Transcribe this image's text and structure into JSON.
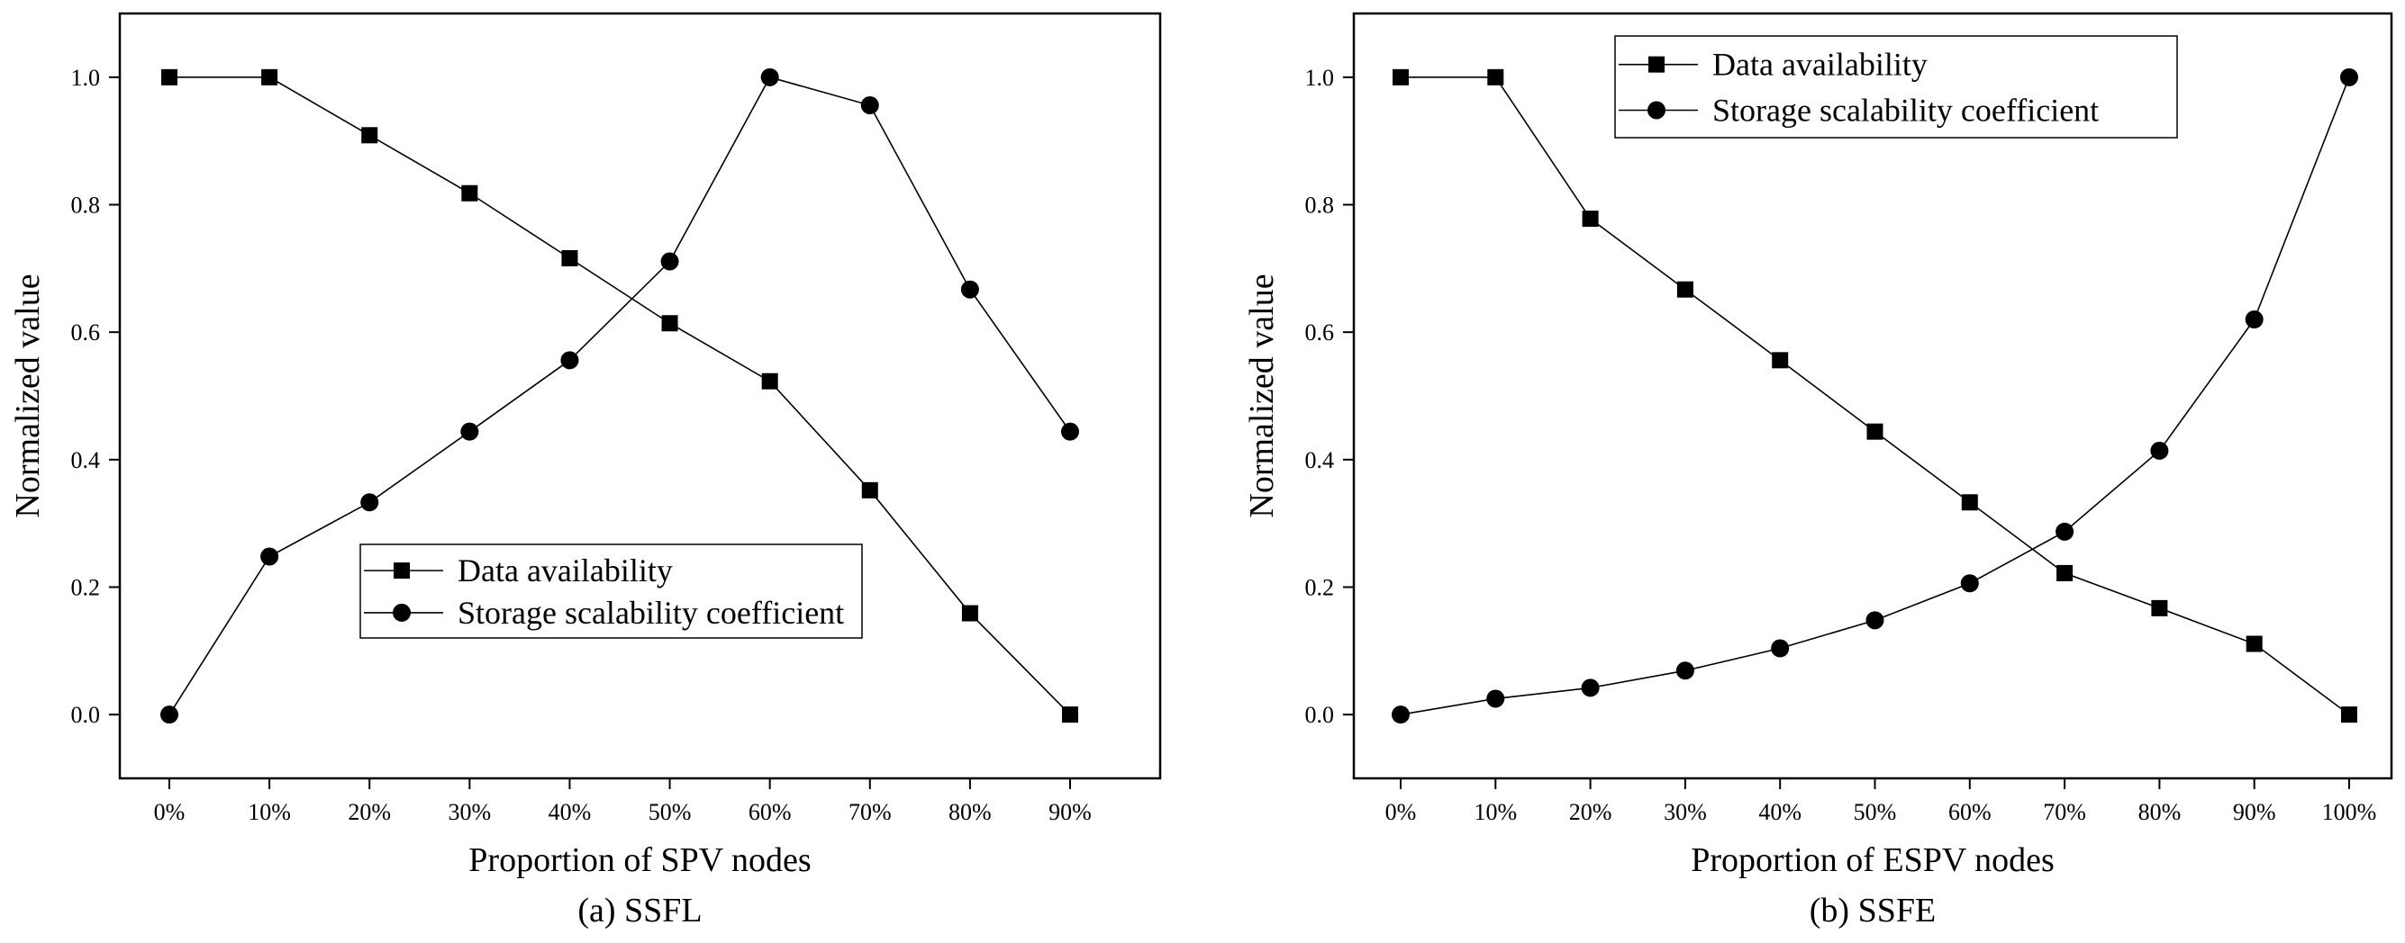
{
  "chart_data": [
    {
      "type": "line",
      "caption": "(a) SSFL",
      "xlabel": "Proportion of SPV nodes",
      "ylabel": "Normalized value",
      "categories": [
        "0%",
        "10%",
        "20%",
        "30%",
        "40%",
        "50%",
        "60%",
        "70%",
        "80%",
        "90%"
      ],
      "ylim": [
        -0.1,
        1.1
      ],
      "yticks": [
        "0.0",
        "0.2",
        "0.4",
        "0.6",
        "0.8",
        "1.0"
      ],
      "legend_position": "lower-center",
      "series": [
        {
          "name": "Data availability",
          "marker": "square",
          "values": [
            1.0,
            1.0,
            0.909,
            0.818,
            0.716,
            0.614,
            0.523,
            0.352,
            0.159,
            0.0
          ]
        },
        {
          "name": "Storage scalability coefficient",
          "marker": "circle",
          "values": [
            0.0,
            0.248,
            0.333,
            0.444,
            0.556,
            0.711,
            1.0,
            0.956,
            0.667,
            0.444
          ]
        }
      ]
    },
    {
      "type": "line",
      "caption": "(b) SSFE",
      "xlabel": "Proportion of ESPV nodes",
      "ylabel": "Normalized value",
      "categories": [
        "0%",
        "10%",
        "20%",
        "30%",
        "40%",
        "50%",
        "60%",
        "70%",
        "80%",
        "90%",
        "100%"
      ],
      "ylim": [
        -0.1,
        1.1
      ],
      "yticks": [
        "0.0",
        "0.2",
        "0.4",
        "0.6",
        "0.8",
        "1.0"
      ],
      "legend_position": "top-left",
      "series": [
        {
          "name": "Data availability",
          "marker": "square",
          "values": [
            1.0,
            1.0,
            0.778,
            0.667,
            0.556,
            0.444,
            0.333,
            0.222,
            0.167,
            0.111,
            0.0
          ]
        },
        {
          "name": "Storage scalability coefficient",
          "marker": "circle",
          "values": [
            0.0,
            0.025,
            0.042,
            0.069,
            0.104,
            0.148,
            0.206,
            0.287,
            0.414,
            0.62,
            1.0
          ]
        }
      ]
    }
  ]
}
